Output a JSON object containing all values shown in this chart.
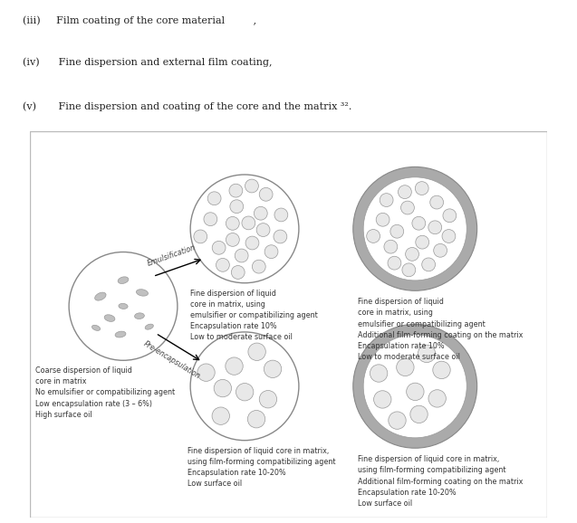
{
  "bg_color": "#ffffff",
  "outer_ring_color": "#aaaaaa",
  "outer_ring_fill": "#aaaaaa",
  "circle_border": "#aaaaaa",
  "blob_color": "#c0c0c0",
  "small_dot_fill": "#e8e8e8",
  "small_dot_border": "#aaaaaa",
  "label_coarse": "Coarse dispersion of liquid\ncore in matrix\nNo emulsifier or compatibilizing agent\nLow encapsulation rate (3 – 6%)\nHigh surface oil",
  "label_top_mid": "Fine dispersion of liquid\ncore in matrix, using\nemulsifier or compatibilizing agent\nEncapsulation rate 10%\nLow to moderate surface oil",
  "label_top_right": "Fine dispersion of liquid\ncore in matrix, using\nemulsifier or compatibilizing agent\nAdditional film-forming coating on the matrix\nEncapsulation rate 10%\nLow to moderate surface oil",
  "label_bot_mid": "Fine dispersion of liquid core in matrix,\nusing film-forming compatibilizing agent\nEncapsulation rate 10-20%\nLow surface oil",
  "label_bot_right": "Fine dispersion of liquid core in matrix,\nusing film-forming compatibilizing agent\nAdditional film-forming coating on the matrix\nEncapsulation rate 10-20%\nLow surface oil",
  "arrow_emulsification": "Emulsification",
  "arrow_preencapsulation": "Pre-encapsulation",
  "header_lines": [
    "(iii)     Film coating of the core material         ,",
    "(iv)      Fine dispersion and external film coating,",
    "(v)       Fine dispersion and coating of the core and the matrix ³²."
  ]
}
